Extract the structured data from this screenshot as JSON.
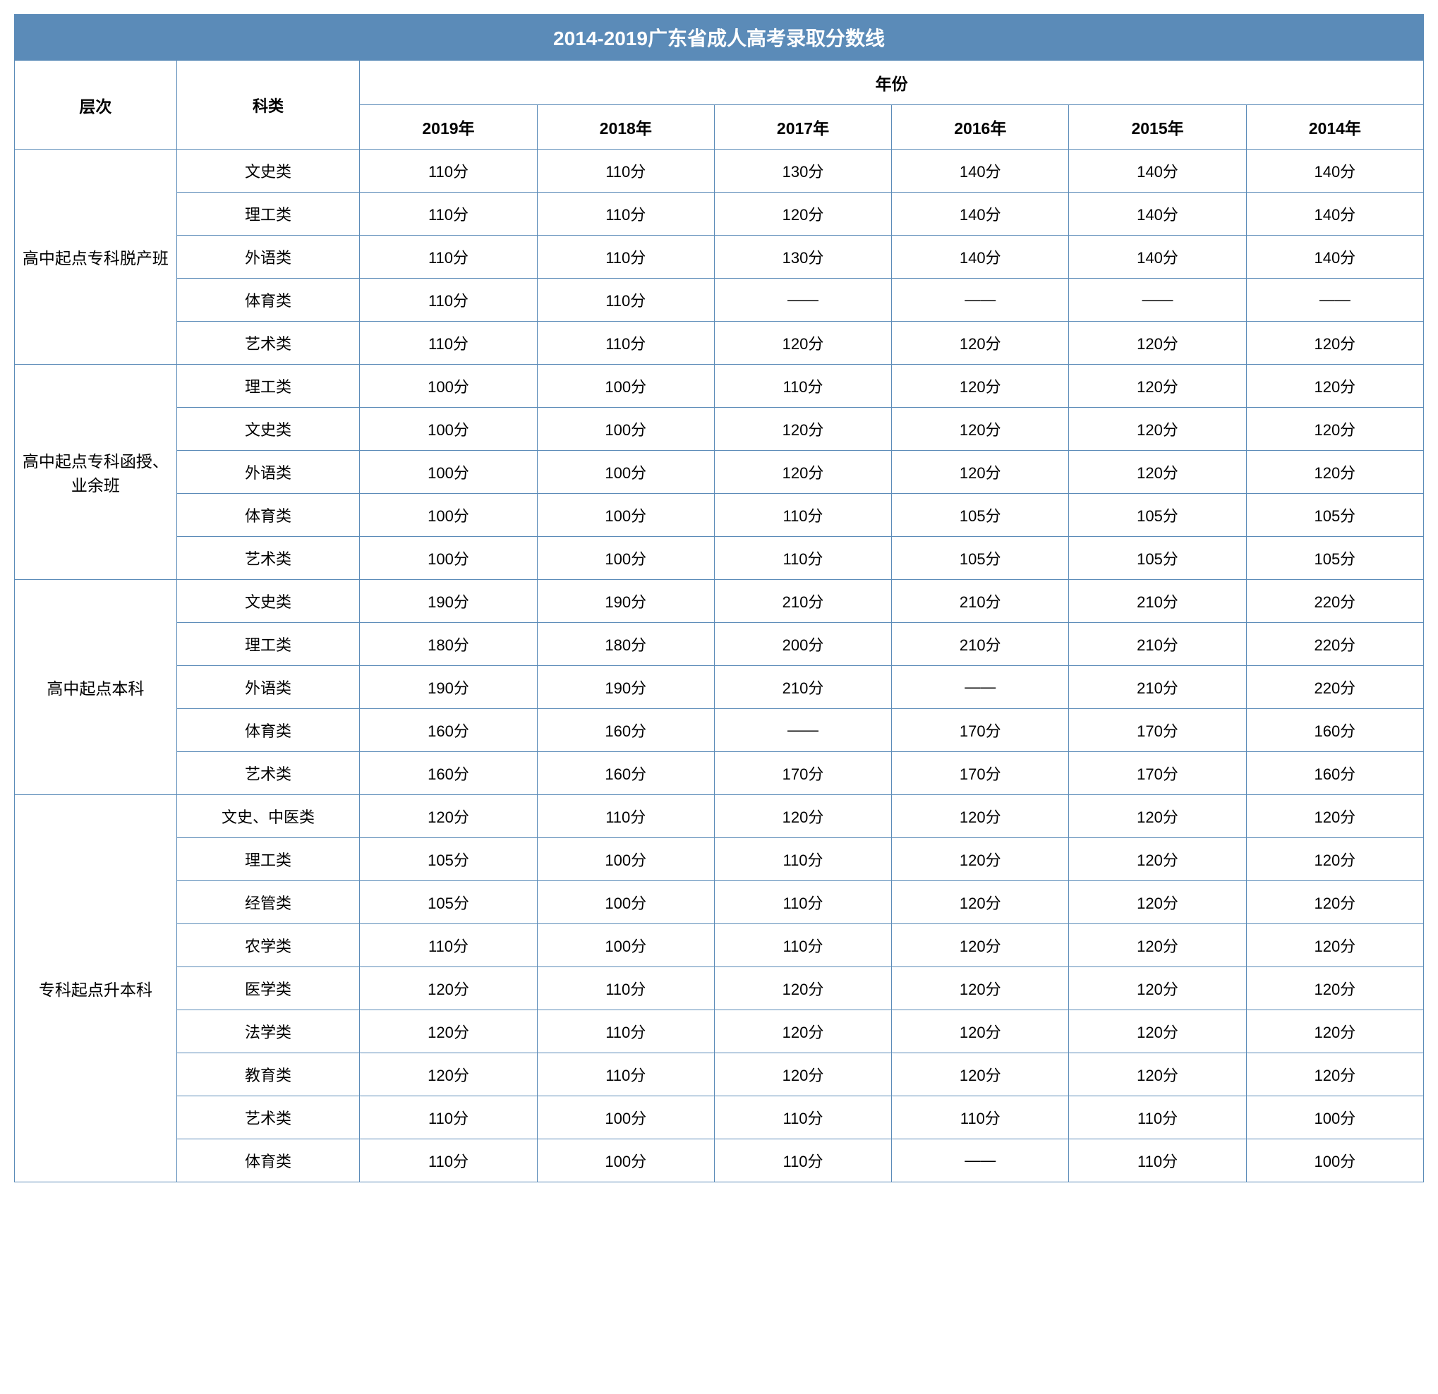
{
  "title": "2014-2019广东省成人高考录取分数线",
  "colors": {
    "header_bg": "#5b8bb8",
    "header_text": "#ffffff",
    "border": "#5b8bb8",
    "cell_text": "#000000",
    "bg": "#ffffff"
  },
  "typography": {
    "title_fontsize": 28,
    "header_fontsize": 23,
    "cell_fontsize": 22,
    "font_family": "Microsoft YaHei"
  },
  "headers": {
    "level": "层次",
    "subject": "科类",
    "year_group": "年份",
    "years": [
      "2019年",
      "2018年",
      "2017年",
      "2016年",
      "2015年",
      "2014年"
    ]
  },
  "groups": [
    {
      "level": "高中起点专科脱产班",
      "rows": [
        {
          "subject": "文史类",
          "scores": [
            "110分",
            "110分",
            "130分",
            "140分",
            "140分",
            "140分"
          ]
        },
        {
          "subject": "理工类",
          "scores": [
            "110分",
            "110分",
            "120分",
            "140分",
            "140分",
            "140分"
          ]
        },
        {
          "subject": "外语类",
          "scores": [
            "110分",
            "110分",
            "130分",
            "140分",
            "140分",
            "140分"
          ]
        },
        {
          "subject": "体育类",
          "scores": [
            "110分",
            "110分",
            "——",
            "——",
            "——",
            "——"
          ]
        },
        {
          "subject": "艺术类",
          "scores": [
            "110分",
            "110分",
            "120分",
            "120分",
            "120分",
            "120分"
          ]
        }
      ]
    },
    {
      "level": "高中起点专科函授、业余班",
      "rows": [
        {
          "subject": "理工类",
          "scores": [
            "100分",
            "100分",
            "110分",
            "120分",
            "120分",
            "120分"
          ]
        },
        {
          "subject": "文史类",
          "scores": [
            "100分",
            "100分",
            "120分",
            "120分",
            "120分",
            "120分"
          ]
        },
        {
          "subject": "外语类",
          "scores": [
            "100分",
            "100分",
            "120分",
            "120分",
            "120分",
            "120分"
          ]
        },
        {
          "subject": "体育类",
          "scores": [
            "100分",
            "100分",
            "110分",
            "105分",
            "105分",
            "105分"
          ]
        },
        {
          "subject": "艺术类",
          "scores": [
            "100分",
            "100分",
            "110分",
            "105分",
            "105分",
            "105分"
          ]
        }
      ]
    },
    {
      "level": "高中起点本科",
      "rows": [
        {
          "subject": "文史类",
          "scores": [
            "190分",
            "190分",
            "210分",
            "210分",
            "210分",
            "220分"
          ]
        },
        {
          "subject": "理工类",
          "scores": [
            "180分",
            "180分",
            "200分",
            "210分",
            "210分",
            "220分"
          ]
        },
        {
          "subject": "外语类",
          "scores": [
            "190分",
            "190分",
            "210分",
            "——",
            "210分",
            "220分"
          ]
        },
        {
          "subject": "体育类",
          "scores": [
            "160分",
            "160分",
            "——",
            "170分",
            "170分",
            "160分"
          ]
        },
        {
          "subject": "艺术类",
          "scores": [
            "160分",
            "160分",
            "170分",
            "170分",
            "170分",
            "160分"
          ]
        }
      ]
    },
    {
      "level": "专科起点升本科",
      "rows": [
        {
          "subject": "文史、中医类",
          "scores": [
            "120分",
            "110分",
            "120分",
            "120分",
            "120分",
            "120分"
          ]
        },
        {
          "subject": "理工类",
          "scores": [
            "105分",
            "100分",
            "110分",
            "120分",
            "120分",
            "120分"
          ]
        },
        {
          "subject": "经管类",
          "scores": [
            "105分",
            "100分",
            "110分",
            "120分",
            "120分",
            "120分"
          ]
        },
        {
          "subject": "农学类",
          "scores": [
            "110分",
            "100分",
            "110分",
            "120分",
            "120分",
            "120分"
          ]
        },
        {
          "subject": "医学类",
          "scores": [
            "120分",
            "110分",
            "120分",
            "120分",
            "120分",
            "120分"
          ]
        },
        {
          "subject": "法学类",
          "scores": [
            "120分",
            "110分",
            "120分",
            "120分",
            "120分",
            "120分"
          ]
        },
        {
          "subject": "教育类",
          "scores": [
            "120分",
            "110分",
            "120分",
            "120分",
            "120分",
            "120分"
          ]
        },
        {
          "subject": "艺术类",
          "scores": [
            "110分",
            "100分",
            "110分",
            "110分",
            "110分",
            "100分"
          ]
        },
        {
          "subject": "体育类",
          "scores": [
            "110分",
            "100分",
            "110分",
            "——",
            "110分",
            "100分"
          ]
        }
      ]
    }
  ]
}
